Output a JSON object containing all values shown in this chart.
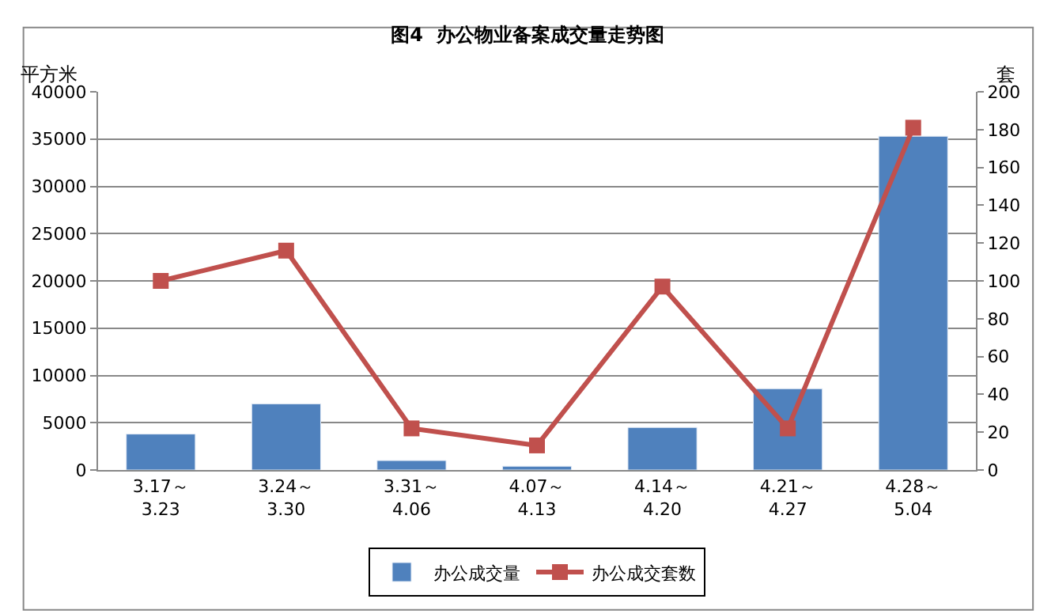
{
  "chart_data": {
    "type": "bar",
    "title": "图4  办公物业备案成交量走势图",
    "ylabel": "平方米",
    "y2label": "套",
    "categories": [
      "3.17～\n3.23",
      "3.24～\n3.30",
      "3.31～\n4.06",
      "4.07～\n4.13",
      "4.14～\n4.20",
      "4.21～\n4.27",
      "4.28～\n5.04"
    ],
    "series": [
      {
        "name": "办公成交量",
        "color": "#4f81bd",
        "values": [
          3800,
          7000,
          1000,
          400,
          4500,
          8600,
          35300
        ]
      },
      {
        "name": "办公成交套数",
        "type": "line",
        "axis": "y2",
        "color": "#c0504d",
        "marker": "square",
        "values": [
          100,
          116,
          22,
          13,
          97,
          22,
          181
        ]
      }
    ],
    "ylim": [
      0,
      40000
    ],
    "yticks": [
      0,
      5000,
      10000,
      15000,
      20000,
      25000,
      30000,
      35000,
      40000
    ],
    "y2lim": [
      0,
      200
    ],
    "y2ticks": [
      0,
      20,
      40,
      60,
      80,
      100,
      120,
      140,
      160,
      180,
      200
    ],
    "grid": "y",
    "legend": "bottom"
  }
}
